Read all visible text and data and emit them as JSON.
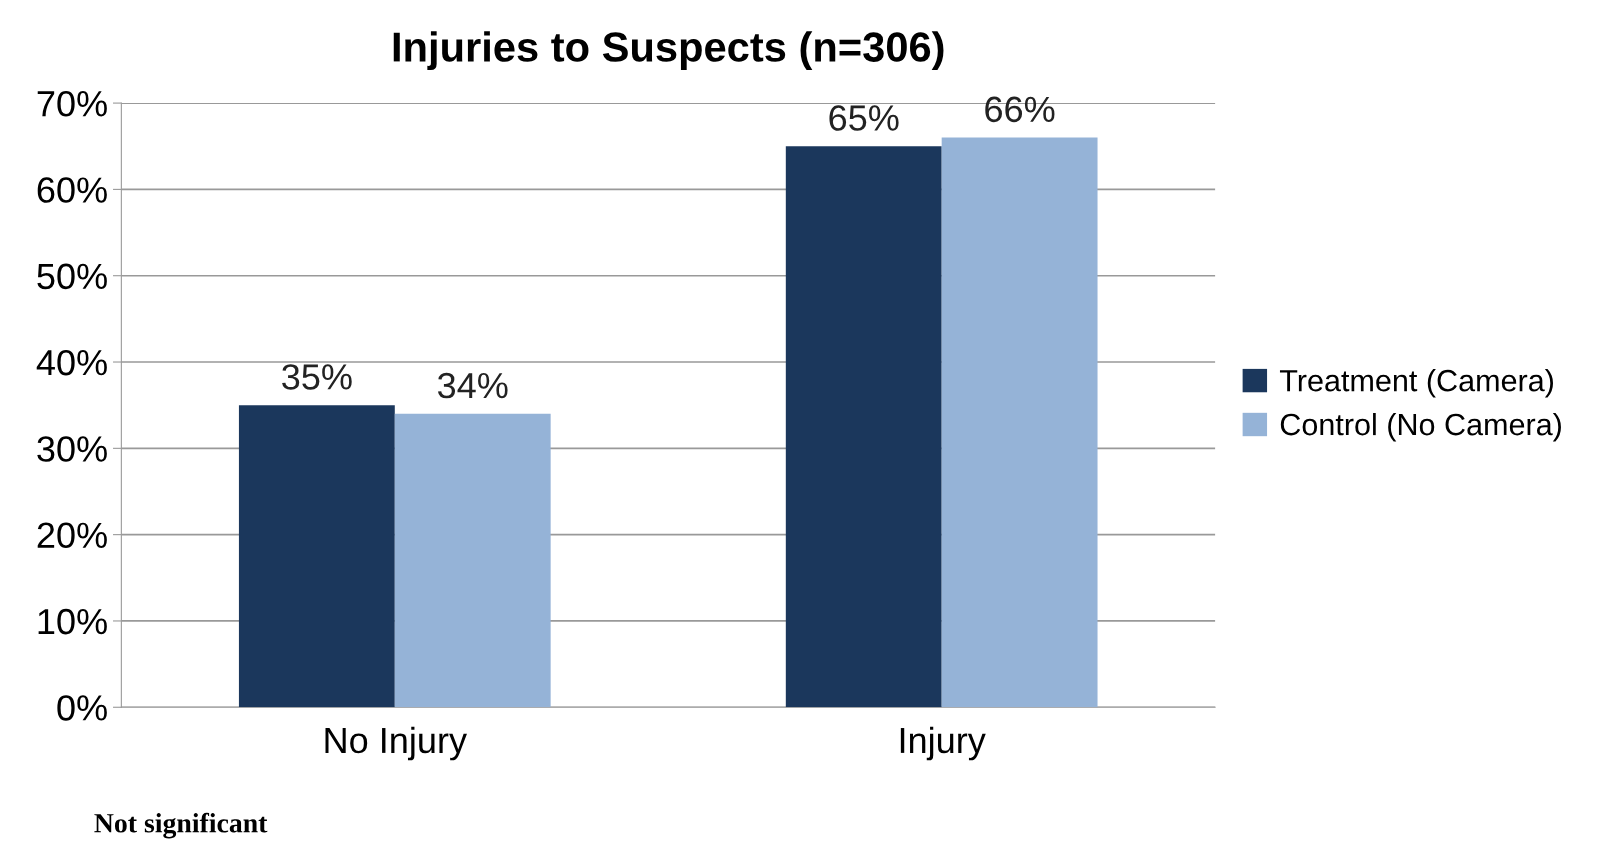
{
  "chart_data": {
    "type": "bar",
    "title": "Injuries to Suspects (n=306)",
    "categories": [
      "No Injury",
      "Injury"
    ],
    "series": [
      {
        "name": "Treatment (Camera)",
        "color": "#1b375c",
        "values": [
          35,
          65
        ],
        "value_labels": [
          "35%",
          "65%"
        ]
      },
      {
        "name": "Control (No Camera)",
        "color": "#95b3d7",
        "values": [
          34,
          66
        ],
        "value_labels": [
          "34%",
          "66%"
        ]
      }
    ],
    "ylim": [
      0,
      70
    ],
    "yticks": [
      {
        "value": 0,
        "label": "0%"
      },
      {
        "value": 10,
        "label": "10%"
      },
      {
        "value": 20,
        "label": "20%"
      },
      {
        "value": 30,
        "label": "30%"
      },
      {
        "value": 40,
        "label": "40%"
      },
      {
        "value": 50,
        "label": "50%"
      },
      {
        "value": 60,
        "label": "60%"
      },
      {
        "value": 70,
        "label": "70%"
      }
    ],
    "grid": "y",
    "legend": "right",
    "annotations": [
      "Not significant"
    ]
  }
}
